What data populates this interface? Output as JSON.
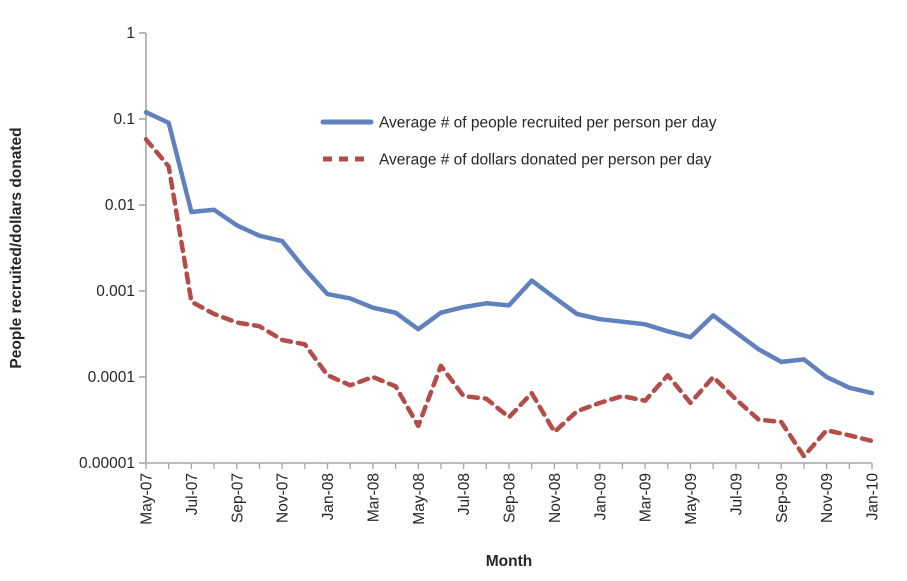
{
  "chart_data": {
    "type": "line",
    "title": "",
    "xlabel": "Month",
    "ylabel": "People recruited/dollars donated",
    "y_scale": "log",
    "ylim": [
      1e-05,
      1
    ],
    "grid": false,
    "legend_position": "inside-top-center",
    "categories": [
      "May-07",
      "Jun-07",
      "Jul-07",
      "Aug-07",
      "Sep-07",
      "Oct-07",
      "Nov-07",
      "Dec-07",
      "Jan-08",
      "Feb-08",
      "Mar-08",
      "Apr-08",
      "May-08",
      "Jun-08",
      "Jul-08",
      "Aug-08",
      "Sep-08",
      "Oct-08",
      "Nov-08",
      "Dec-08",
      "Jan-09",
      "Feb-09",
      "Mar-09",
      "Apr-09",
      "May-09",
      "Jun-09",
      "Jul-09",
      "Aug-09",
      "Sep-09",
      "Oct-09",
      "Nov-09",
      "Dec-09",
      "Jan-10"
    ],
    "x_label_every": 2,
    "y_ticks": [
      {
        "value": 1,
        "label": "1"
      },
      {
        "value": 0.1,
        "label": "0.1"
      },
      {
        "value": 0.01,
        "label": "0.01"
      },
      {
        "value": 0.001,
        "label": "0.001"
      },
      {
        "value": 0.0001,
        "label": "0.0001"
      },
      {
        "value": 1e-05,
        "label": "0.00001"
      }
    ],
    "series": [
      {
        "name": "Average # of people recruited per person per day",
        "color": "#6081BD",
        "line_style": "solid",
        "values": [
          0.12,
          0.09,
          0.0083,
          0.0088,
          0.0058,
          0.0044,
          0.0038,
          0.0018,
          0.00092,
          0.00082,
          0.00064,
          0.00056,
          0.00036,
          0.00056,
          0.00065,
          0.00072,
          0.00068,
          0.00132,
          0.00084,
          0.00054,
          0.00047,
          0.00044,
          0.00041,
          0.00034,
          0.00029,
          0.00052,
          0.00033,
          0.00021,
          0.00015,
          0.00016,
          0.0001,
          7.5e-05,
          6.5e-05
        ]
      },
      {
        "name": "Average # of dollars donated per person per day",
        "color": "#B24D4A",
        "line_style": "dashed",
        "values": [
          0.058,
          0.028,
          0.00075,
          0.00054,
          0.00043,
          0.00039,
          0.00027,
          0.00024,
          0.000105,
          8e-05,
          0.0001,
          7.8e-05,
          2.7e-05,
          0.000135,
          6e-05,
          5.6e-05,
          3.4e-05,
          6.5e-05,
          2.3e-05,
          4e-05,
          5e-05,
          6e-05,
          5.3e-05,
          0.000105,
          5e-05,
          0.0001,
          5.5e-05,
          3.2e-05,
          3e-05,
          1.2e-05,
          2.4e-05,
          2.1e-05,
          1.8e-05
        ]
      }
    ],
    "axis_color": "#A6A6A6",
    "text_color": "#262626"
  }
}
